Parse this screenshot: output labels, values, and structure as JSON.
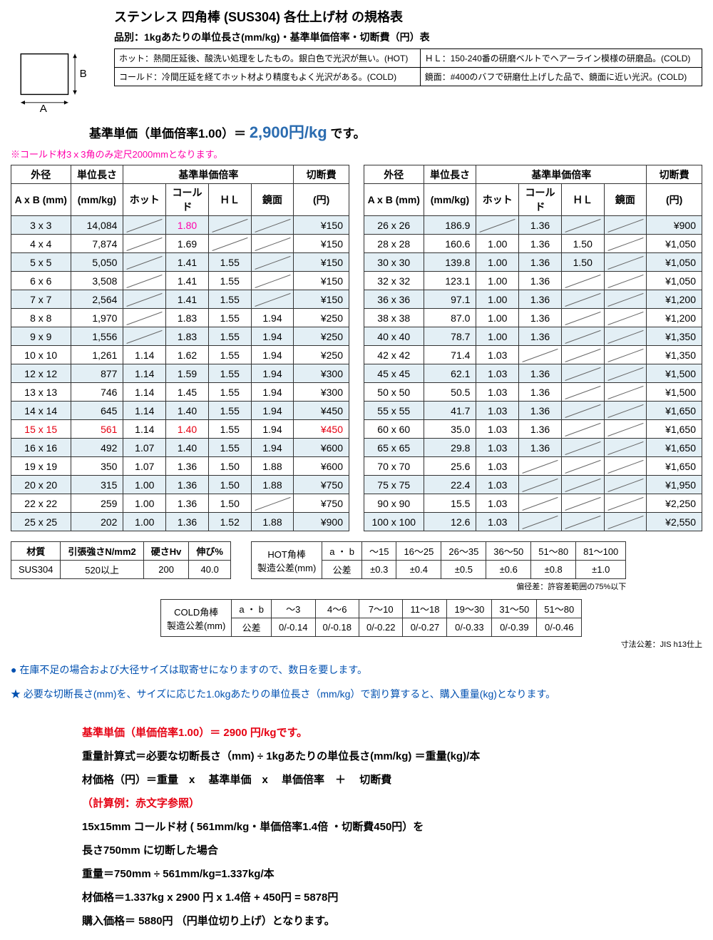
{
  "header": {
    "title": "ステンレス 四角棒 (SUS304) 各仕上げ材 の規格表",
    "subtitle": "品別：1kgあたりの単位長さ(mm/kg)・基準単価倍率・切断費（円）表"
  },
  "diagram": {
    "a_label": "A",
    "b_label": "B"
  },
  "desc": {
    "r1c1": "ホット：熱間圧延後、酸洗い処理をしたもの。銀白色で光沢が無い。(HOT)",
    "r1c2": "ＨＬ：150-240番の研磨ベルトでヘアーライン模様の研磨品。(COLD)",
    "r2c1": "コールド：冷間圧延を経てホット材より精度もよく光沢がある。(COLD)",
    "r2c2": "鏡面：#400のバフで研磨仕上げした品で、鏡面に近い光沢。(COLD)"
  },
  "base_price": {
    "label_left": "基準単価（単価倍率1.00）＝ ",
    "value": "2,900円/kg",
    "label_right": " です。"
  },
  "pink_note": "※コールド材3ｘ3角のみ定尺2000mmとなります。",
  "table_headers": {
    "h1": "外径",
    "h2": "単位長さ",
    "h3": "基準単価倍率",
    "h4": "切断費",
    "s1": "A x B (mm)",
    "s2": "(mm/kg)",
    "s3": "ホット",
    "s4": "コールド",
    "s5": "ＨＬ",
    "s6": "鏡面",
    "s7": "(円)"
  },
  "left_rows": [
    {
      "size": "3 x 3",
      "len": "14,084",
      "hot": null,
      "cold": "1.80",
      "hl": null,
      "mir": null,
      "cut": "¥150",
      "alt": true,
      "cold_pink": true
    },
    {
      "size": "4 x 4",
      "len": "7,874",
      "hot": null,
      "cold": "1.69",
      "hl": null,
      "mir": null,
      "cut": "¥150"
    },
    {
      "size": "5 x 5",
      "len": "5,050",
      "hot": null,
      "cold": "1.41",
      "hl": "1.55",
      "mir": null,
      "cut": "¥150",
      "alt": true
    },
    {
      "size": "6 x 6",
      "len": "3,508",
      "hot": null,
      "cold": "1.41",
      "hl": "1.55",
      "mir": null,
      "cut": "¥150"
    },
    {
      "size": "7 x 7",
      "len": "2,564",
      "hot": null,
      "cold": "1.41",
      "hl": "1.55",
      "mir": null,
      "cut": "¥150",
      "alt": true
    },
    {
      "size": "8 x 8",
      "len": "1,970",
      "hot": null,
      "cold": "1.83",
      "hl": "1.55",
      "mir": "1.94",
      "cut": "¥250"
    },
    {
      "size": "9 x 9",
      "len": "1,556",
      "hot": null,
      "cold": "1.83",
      "hl": "1.55",
      "mir": "1.94",
      "cut": "¥250",
      "alt": true
    },
    {
      "size": "10 x 10",
      "len": "1,261",
      "hot": "1.14",
      "cold": "1.62",
      "hl": "1.55",
      "mir": "1.94",
      "cut": "¥250"
    },
    {
      "size": "12 x 12",
      "len": "877",
      "hot": "1.14",
      "cold": "1.59",
      "hl": "1.55",
      "mir": "1.94",
      "cut": "¥300",
      "alt": true
    },
    {
      "size": "13 x 13",
      "len": "746",
      "hot": "1.14",
      "cold": "1.45",
      "hl": "1.55",
      "mir": "1.94",
      "cut": "¥300"
    },
    {
      "size": "14 x 14",
      "len": "645",
      "hot": "1.14",
      "cold": "1.40",
      "hl": "1.55",
      "mir": "1.94",
      "cut": "¥450",
      "alt": true
    },
    {
      "size": "15 x 15",
      "len": "561",
      "hot": "1.14",
      "cold": "1.40",
      "hl": "1.55",
      "mir": "1.94",
      "cut": "¥450",
      "red": true
    },
    {
      "size": "16 x 16",
      "len": "492",
      "hot": "1.07",
      "cold": "1.40",
      "hl": "1.55",
      "mir": "1.94",
      "cut": "¥600",
      "alt": true
    },
    {
      "size": "19 x 19",
      "len": "350",
      "hot": "1.07",
      "cold": "1.36",
      "hl": "1.50",
      "mir": "1.88",
      "cut": "¥600"
    },
    {
      "size": "20 x 20",
      "len": "315",
      "hot": "1.00",
      "cold": "1.36",
      "hl": "1.50",
      "mir": "1.88",
      "cut": "¥750",
      "alt": true
    },
    {
      "size": "22 x 22",
      "len": "259",
      "hot": "1.00",
      "cold": "1.36",
      "hl": "1.50",
      "mir": null,
      "cut": "¥750"
    },
    {
      "size": "25 x 25",
      "len": "202",
      "hot": "1.00",
      "cold": "1.36",
      "hl": "1.52",
      "mir": "1.88",
      "cut": "¥900",
      "alt": true
    }
  ],
  "right_rows": [
    {
      "size": "26 x 26",
      "len": "186.9",
      "hot": null,
      "cold": "1.36",
      "hl": null,
      "mir": null,
      "cut": "¥900",
      "alt": true
    },
    {
      "size": "28 x 28",
      "len": "160.6",
      "hot": "1.00",
      "cold": "1.36",
      "hl": "1.50",
      "mir": null,
      "cut": "¥1,050"
    },
    {
      "size": "30 x 30",
      "len": "139.8",
      "hot": "1.00",
      "cold": "1.36",
      "hl": "1.50",
      "mir": null,
      "cut": "¥1,050",
      "alt": true
    },
    {
      "size": "32 x 32",
      "len": "123.1",
      "hot": "1.00",
      "cold": "1.36",
      "hl": null,
      "mir": null,
      "cut": "¥1,050"
    },
    {
      "size": "36 x 36",
      "len": "97.1",
      "hot": "1.00",
      "cold": "1.36",
      "hl": null,
      "mir": null,
      "cut": "¥1,200",
      "alt": true
    },
    {
      "size": "38 x 38",
      "len": "87.0",
      "hot": "1.00",
      "cold": "1.36",
      "hl": null,
      "mir": null,
      "cut": "¥1,200"
    },
    {
      "size": "40 x 40",
      "len": "78.7",
      "hot": "1.00",
      "cold": "1.36",
      "hl": null,
      "mir": null,
      "cut": "¥1,350",
      "alt": true
    },
    {
      "size": "42 x 42",
      "len": "71.4",
      "hot": "1.03",
      "cold": null,
      "hl": null,
      "mir": null,
      "cut": "¥1,350"
    },
    {
      "size": "45 x 45",
      "len": "62.1",
      "hot": "1.03",
      "cold": "1.36",
      "hl": null,
      "mir": null,
      "cut": "¥1,500",
      "alt": true
    },
    {
      "size": "50 x 50",
      "len": "50.5",
      "hot": "1.03",
      "cold": "1.36",
      "hl": null,
      "mir": null,
      "cut": "¥1,500"
    },
    {
      "size": "55 x 55",
      "len": "41.7",
      "hot": "1.03",
      "cold": "1.36",
      "hl": null,
      "mir": null,
      "cut": "¥1,650",
      "alt": true
    },
    {
      "size": "60 x 60",
      "len": "35.0",
      "hot": "1.03",
      "cold": "1.36",
      "hl": null,
      "mir": null,
      "cut": "¥1,650"
    },
    {
      "size": "65 x 65",
      "len": "29.8",
      "hot": "1.03",
      "cold": "1.36",
      "hl": null,
      "mir": null,
      "cut": "¥1,650",
      "alt": true
    },
    {
      "size": "70 x 70",
      "len": "25.6",
      "hot": "1.03",
      "cold": null,
      "hl": null,
      "mir": null,
      "cut": "¥1,650"
    },
    {
      "size": "75 x 75",
      "len": "22.4",
      "hot": "1.03",
      "cold": null,
      "hl": null,
      "mir": null,
      "cut": "¥1,950",
      "alt": true
    },
    {
      "size": "90 x 90",
      "len": "15.5",
      "hot": "1.03",
      "cold": null,
      "hl": null,
      "mir": null,
      "cut": "¥2,250"
    },
    {
      "size": "100 x 100",
      "len": "12.6",
      "hot": "1.03",
      "cold": null,
      "hl": null,
      "mir": null,
      "cut": "¥2,550",
      "alt": true
    }
  ],
  "mat": {
    "h1": "材質",
    "h2": "引張強さN/mm2",
    "h3": "硬さHv",
    "h4": "伸び%",
    "v1": "SUS304",
    "v2": "520以上",
    "v3": "200",
    "v4": "40.0"
  },
  "hot_tol": {
    "title": "HOT角棒",
    "subtitle": "製造公差(mm)",
    "ab": "a ・ b",
    "tol": "公差",
    "cols": [
      "〜15",
      "16〜25",
      "26〜35",
      "36〜50",
      "51〜80",
      "81〜100"
    ],
    "vals": [
      "±0.3",
      "±0.4",
      "±0.5",
      "±0.6",
      "±0.8",
      "±1.0"
    ],
    "note": "偏径差：許容差範囲の75%以下"
  },
  "cold_tol": {
    "title": "COLD角棒",
    "subtitle": "製造公差(mm)",
    "ab": "a ・ b",
    "tol": "公差",
    "cols": [
      "〜3",
      "4〜6",
      "7〜10",
      "11〜18",
      "19〜30",
      "31〜50",
      "51〜80"
    ],
    "vals": [
      "0/-0.14",
      "0/-0.18",
      "0/-0.22",
      "0/-0.27",
      "0/-0.33",
      "0/-0.39",
      "0/-0.46"
    ],
    "note": "寸法公差：JIS h13仕上"
  },
  "note1": "● 在庫不足の場合および大径サイズは取寄せになりますので、数日を要します。",
  "note2": "★ 必要な切断長さ(mm)を、サイズに応じた1.0kgあたりの単位長さ（mm/kg）で割り算すると、購入重量(kg)となります。",
  "calc": {
    "l1": "基準単価（単価倍率1.00）＝ 2900 円/kgです。",
    "l2": "重量計算式＝必要な切断長さ（mm) ÷ 1kgあたりの単位長さ(mm/kg) ＝重量(kg)/本",
    "l3": "材価格（円）＝重量　x　 基準単価　x　 単価倍率　＋　 切断費",
    "l4": "（計算例：赤文字参照）",
    "l5": "15x15mm コールド材 ( 561mm/kg・単価倍率1.4倍 ・切断費450円）を",
    "l6": "長さ750mm に切断した場合",
    "l7": "重量＝750mm ÷ 561mm/kg=1.337kg/本",
    "l8": "材価格＝1.337kg x 2900 円 x 1.4倍 + 450円 = 5878円",
    "l9": "購入価格＝ 5880円 （円単位切り上げ）となります。"
  }
}
